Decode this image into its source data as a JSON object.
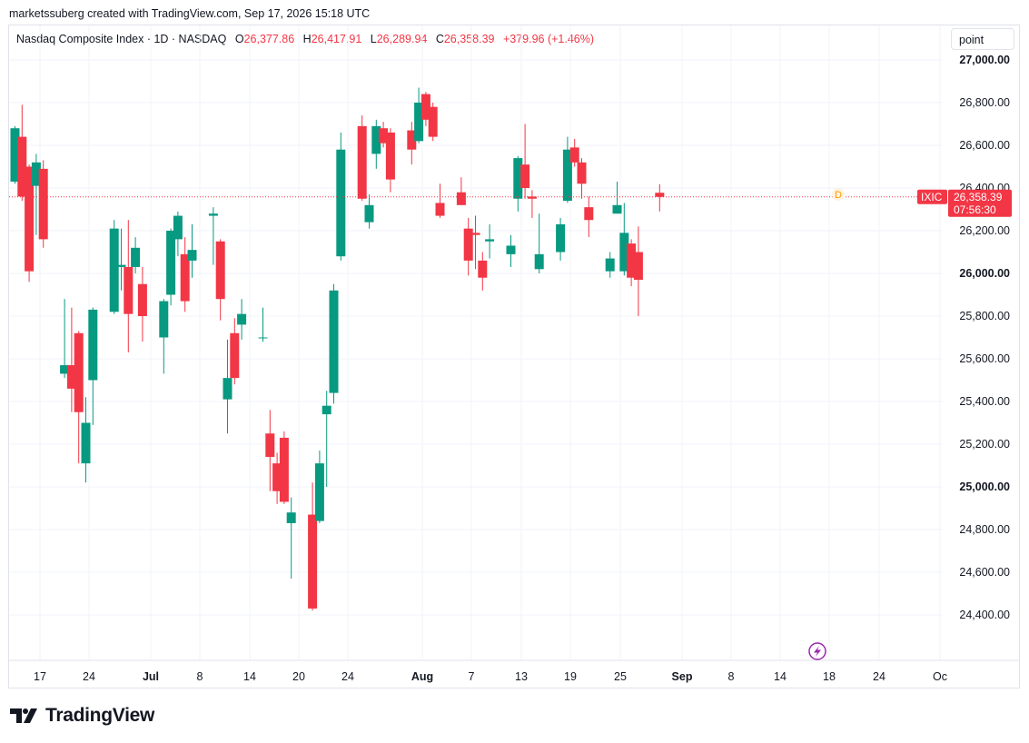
{
  "credit": "marketssuberg created with TradingView.com, Sep 17, 2026 15:18 UTC",
  "legend": {
    "title": "Nasdaq Composite Index · 1D · NASDAQ",
    "o_label": "O",
    "o_value": "26,377.86",
    "h_label": "H",
    "h_value": "26,417.91",
    "l_label": "L",
    "l_value": "26,289.94",
    "c_label": "C",
    "c_value": "26,358.39",
    "change": "+379.96 (+1.46%)"
  },
  "unit_button": "point",
  "price_tag": {
    "symbol": "IXIC",
    "price": "26,358.39",
    "countdown": "07:56:30"
  },
  "marker_label": "D",
  "logo_text": "TradingView",
  "colors": {
    "up": "#089981",
    "down": "#f23645",
    "grid": "#f0f3fa",
    "axis_text": "#131722",
    "marker": "#ff9800",
    "event": "#9c27b0"
  },
  "chart_data": {
    "type": "candlestick",
    "title": "Nasdaq Composite Index · 1D · NASDAQ",
    "ylim": [
      24250,
      27250
    ],
    "y_ticks": [
      "27,000.00",
      "26,800.00",
      "26,600.00",
      "26,400.00",
      "26,200.00",
      "26,000.00",
      "25,800.00",
      "25,600.00",
      "25,400.00",
      "25,200.00",
      "25,000.00",
      "24,800.00",
      "24,600.00",
      "24,400.00"
    ],
    "x_ticks": [
      "17",
      "24",
      "Jul",
      "8",
      "14",
      "20",
      "24",
      "Aug",
      "7",
      "13",
      "19",
      "25",
      "Sep",
      "8",
      "14",
      "18",
      "24",
      "Oc"
    ],
    "last_close": 26358.39,
    "candles": [
      {
        "o": 26430,
        "h": 26690,
        "l": 26420,
        "c": 26680
      },
      {
        "o": 26640,
        "h": 26790,
        "l": 26340,
        "c": 26360
      },
      {
        "o": 26500,
        "h": 26510,
        "l": 25960,
        "c": 26010
      },
      {
        "o": 26410,
        "h": 26560,
        "l": 26180,
        "c": 26520
      },
      {
        "o": 26490,
        "h": 26530,
        "l": 26120,
        "c": 26160
      },
      {
        "o": 25530,
        "h": 25880,
        "l": 25510,
        "c": 25570
      },
      {
        "o": 25570,
        "h": 25840,
        "l": 25350,
        "c": 25460
      },
      {
        "o": 25720,
        "h": 25730,
        "l": 25110,
        "c": 25350
      },
      {
        "o": 25110,
        "h": 25420,
        "l": 25020,
        "c": 25300
      },
      {
        "o": 25500,
        "h": 25840,
        "l": 25290,
        "c": 25830
      },
      {
        "o": 25820,
        "h": 26250,
        "l": 25810,
        "c": 26210
      },
      {
        "o": 26030,
        "h": 26210,
        "l": 25920,
        "c": 26040
      },
      {
        "o": 26030,
        "h": 26250,
        "l": 25630,
        "c": 25810
      },
      {
        "o": 26030,
        "h": 26170,
        "l": 26000,
        "c": 26120
      },
      {
        "o": 25950,
        "h": 26030,
        "l": 25680,
        "c": 25800
      },
      {
        "o": 25700,
        "h": 25880,
        "l": 25530,
        "c": 25870
      },
      {
        "o": 25900,
        "h": 26210,
        "l": 25850,
        "c": 26200
      },
      {
        "o": 26160,
        "h": 26290,
        "l": 26080,
        "c": 26270
      },
      {
        "o": 26090,
        "h": 26170,
        "l": 25820,
        "c": 25870
      },
      {
        "o": 26060,
        "h": 26230,
        "l": 25980,
        "c": 26110
      },
      {
        "o": 26270,
        "h": 26310,
        "l": 26040,
        "c": 26280
      },
      {
        "o": 26150,
        "h": 26160,
        "l": 25780,
        "c": 25880
      },
      {
        "o": 25410,
        "h": 25690,
        "l": 25250,
        "c": 25510
      },
      {
        "o": 25720,
        "h": 25790,
        "l": 25480,
        "c": 25510
      },
      {
        "o": 25760,
        "h": 25880,
        "l": 25690,
        "c": 25810
      },
      {
        "o": 25700,
        "h": 25840,
        "l": 25680,
        "c": 25700
      },
      {
        "o": 25250,
        "h": 25360,
        "l": 24980,
        "c": 25140
      },
      {
        "o": 25110,
        "h": 25160,
        "l": 24920,
        "c": 24980
      },
      {
        "o": 25230,
        "h": 25260,
        "l": 24920,
        "c": 24930
      },
      {
        "o": 24830,
        "h": 24950,
        "l": 24570,
        "c": 24880
      },
      {
        "o": 24870,
        "h": 25020,
        "l": 24420,
        "c": 24430
      },
      {
        "o": 24840,
        "h": 25170,
        "l": 24830,
        "c": 25110
      },
      {
        "o": 25340,
        "h": 25450,
        "l": 25000,
        "c": 25380
      },
      {
        "o": 25440,
        "h": 25950,
        "l": 25390,
        "c": 25920
      },
      {
        "o": 26080,
        "h": 26660,
        "l": 26060,
        "c": 26580
      },
      {
        "o": 26690,
        "h": 26740,
        "l": 26340,
        "c": 26350
      },
      {
        "o": 26240,
        "h": 26370,
        "l": 26210,
        "c": 26320
      },
      {
        "o": 26560,
        "h": 26720,
        "l": 26490,
        "c": 26690
      },
      {
        "o": 26680,
        "h": 26710,
        "l": 26590,
        "c": 26610
      },
      {
        "o": 26660,
        "h": 26680,
        "l": 26380,
        "c": 26440
      },
      {
        "o": 26670,
        "h": 26710,
        "l": 26510,
        "c": 26580
      },
      {
        "o": 26620,
        "h": 26870,
        "l": 26610,
        "c": 26800
      },
      {
        "o": 26840,
        "h": 26850,
        "l": 26690,
        "c": 26720
      },
      {
        "o": 26780,
        "h": 26800,
        "l": 26620,
        "c": 26640
      },
      {
        "o": 26330,
        "h": 26420,
        "l": 26260,
        "c": 26270
      },
      {
        "o": 26380,
        "h": 26450,
        "l": 26320,
        "c": 26320
      },
      {
        "o": 26210,
        "h": 26260,
        "l": 25990,
        "c": 26060
      },
      {
        "o": 26190,
        "h": 26270,
        "l": 26020,
        "c": 26180
      },
      {
        "o": 26060,
        "h": 26100,
        "l": 25920,
        "c": 25980
      },
      {
        "o": 26150,
        "h": 26230,
        "l": 26070,
        "c": 26160
      },
      {
        "o": 26090,
        "h": 26180,
        "l": 26030,
        "c": 26130
      },
      {
        "o": 26350,
        "h": 26550,
        "l": 26290,
        "c": 26540
      },
      {
        "o": 26510,
        "h": 26700,
        "l": 26350,
        "c": 26400
      },
      {
        "o": 26360,
        "h": 26390,
        "l": 26260,
        "c": 26350
      },
      {
        "o": 26020,
        "h": 26280,
        "l": 26000,
        "c": 26090
      },
      {
        "o": 26100,
        "h": 26260,
        "l": 26060,
        "c": 26230
      },
      {
        "o": 26340,
        "h": 26640,
        "l": 26330,
        "c": 26580
      },
      {
        "o": 26590,
        "h": 26630,
        "l": 26500,
        "c": 26520
      },
      {
        "o": 26520,
        "h": 26540,
        "l": 26350,
        "c": 26420
      },
      {
        "o": 26310,
        "h": 26360,
        "l": 26170,
        "c": 26250
      },
      {
        "o": 26010,
        "h": 26100,
        "l": 25980,
        "c": 26070
      },
      {
        "o": 26280,
        "h": 26430,
        "l": 26280,
        "c": 26320
      },
      {
        "o": 26010,
        "h": 26330,
        "l": 25990,
        "c": 26190
      },
      {
        "o": 26140,
        "h": 26160,
        "l": 25940,
        "c": 25980
      },
      {
        "o": 26100,
        "h": 26220,
        "l": 25800,
        "c": 25970
      },
      {
        "o": 26377.86,
        "h": 26417.91,
        "l": 26289.94,
        "c": 26358.39
      }
    ]
  }
}
